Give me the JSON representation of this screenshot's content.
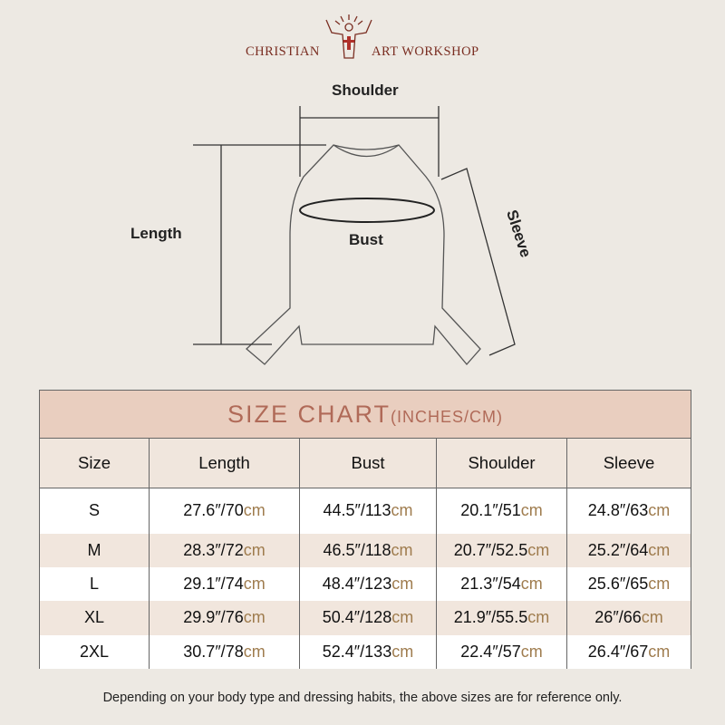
{
  "brand": {
    "left": "CHRISTIAN",
    "right": "ART WORKSHOP"
  },
  "diagram": {
    "shoulder": "Shoulder",
    "length": "Length",
    "bust": "Bust",
    "sleeve": "Sleeve"
  },
  "table": {
    "title": "SIZE CHART",
    "title_units": "(INCHES/CM)",
    "headers": [
      "Size",
      "Length",
      "Bust",
      "Shoulder",
      "Sleeve"
    ],
    "rows": [
      {
        "size": "S",
        "values": [
          [
            "27.6″/70",
            "cm"
          ],
          [
            "44.5″/113",
            "cm"
          ],
          [
            "20.1″/51",
            "cm"
          ],
          [
            "24.8″/63",
            "cm"
          ]
        ]
      },
      {
        "size": "M",
        "values": [
          [
            "28.3″/72",
            "cm"
          ],
          [
            "46.5″/118",
            "cm"
          ],
          [
            "20.7″/52.5",
            "cm"
          ],
          [
            "25.2″/64",
            "cm"
          ]
        ]
      },
      {
        "size": "L",
        "values": [
          [
            "29.1″/74",
            "cm"
          ],
          [
            "48.4″/123",
            "cm"
          ],
          [
            "21.3″/54",
            "cm"
          ],
          [
            "25.6″/65",
            "cm"
          ]
        ]
      },
      {
        "size": "XL",
        "values": [
          [
            "29.9″/76",
            "cm"
          ],
          [
            "50.4″/128",
            "cm"
          ],
          [
            "21.9″/55.5",
            "cm"
          ],
          [
            "26″/66",
            "cm"
          ]
        ]
      },
      {
        "size": "2XL",
        "values": [
          [
            "30.7″/78",
            "cm"
          ],
          [
            "52.4″/133",
            "cm"
          ],
          [
            "22.4″/57",
            "cm"
          ],
          [
            "26.4″/67",
            "cm"
          ]
        ]
      }
    ]
  },
  "footer": "Depending on your body type and dressing habits, the above sizes are for reference only.",
  "colors": {
    "brand": "#7a2e22",
    "title_band": "#e9cebf",
    "title_text": "#b06a58",
    "cm_text": "#9f7c4e"
  }
}
